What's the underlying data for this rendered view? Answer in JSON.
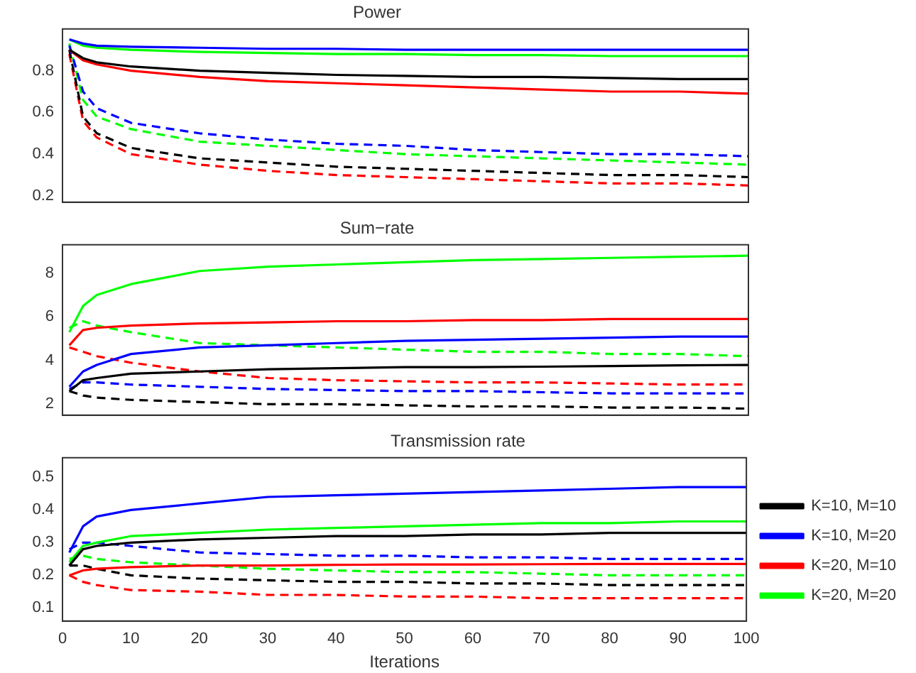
{
  "chart_data": [
    {
      "type": "line",
      "title": "Power",
      "x": [
        1,
        3,
        5,
        10,
        20,
        30,
        40,
        50,
        60,
        70,
        80,
        90,
        100
      ],
      "xlim": [
        0,
        100
      ],
      "xticks": [
        0,
        10,
        20,
        30,
        40,
        50,
        60,
        70,
        80,
        90,
        100
      ],
      "ylim": [
        0.17,
        1.0
      ],
      "yticks": [
        0.2,
        0.4,
        0.6,
        0.8
      ],
      "tick_labels": "y",
      "marker": "none",
      "legend": false,
      "grid": false,
      "series": [
        {
          "color": "#000000",
          "line_style": "solid",
          "values": [
            0.9,
            0.86,
            0.84,
            0.82,
            0.8,
            0.79,
            0.78,
            0.775,
            0.77,
            0.77,
            0.765,
            0.76,
            0.76
          ]
        },
        {
          "color": "#0000ff",
          "line_style": "solid",
          "values": [
            0.95,
            0.93,
            0.92,
            0.915,
            0.91,
            0.905,
            0.905,
            0.9,
            0.9,
            0.9,
            0.9,
            0.9,
            0.9
          ]
        },
        {
          "color": "#ff0000",
          "line_style": "solid",
          "values": [
            0.9,
            0.85,
            0.83,
            0.8,
            0.77,
            0.75,
            0.74,
            0.73,
            0.72,
            0.71,
            0.7,
            0.7,
            0.69
          ]
        },
        {
          "color": "#00ff00",
          "line_style": "solid",
          "values": [
            0.95,
            0.92,
            0.91,
            0.9,
            0.89,
            0.885,
            0.88,
            0.88,
            0.875,
            0.875,
            0.87,
            0.87,
            0.87
          ]
        },
        {
          "color": "#0000ff",
          "line_style": "dashed",
          "values": [
            0.92,
            0.7,
            0.62,
            0.55,
            0.5,
            0.47,
            0.45,
            0.44,
            0.42,
            0.41,
            0.4,
            0.4,
            0.39
          ]
        },
        {
          "color": "#00ff00",
          "line_style": "dashed",
          "values": [
            0.93,
            0.66,
            0.58,
            0.52,
            0.46,
            0.44,
            0.42,
            0.4,
            0.39,
            0.38,
            0.37,
            0.36,
            0.35
          ]
        },
        {
          "color": "#000000",
          "line_style": "dashed",
          "values": [
            0.9,
            0.58,
            0.5,
            0.43,
            0.38,
            0.36,
            0.34,
            0.33,
            0.32,
            0.31,
            0.3,
            0.3,
            0.29
          ]
        },
        {
          "color": "#ff0000",
          "line_style": "dashed",
          "values": [
            0.88,
            0.56,
            0.48,
            0.4,
            0.35,
            0.32,
            0.3,
            0.29,
            0.28,
            0.27,
            0.26,
            0.26,
            0.25
          ]
        }
      ]
    },
    {
      "type": "line",
      "title": "Sum−rate",
      "x": [
        1,
        3,
        5,
        10,
        20,
        30,
        40,
        50,
        60,
        70,
        80,
        90,
        100
      ],
      "xlim": [
        0,
        100
      ],
      "xticks": [
        0,
        10,
        20,
        30,
        40,
        50,
        60,
        70,
        80,
        90,
        100
      ],
      "ylim": [
        1.5,
        9.3
      ],
      "yticks": [
        2,
        4,
        6,
        8
      ],
      "tick_labels": "y",
      "marker": "none",
      "legend": false,
      "grid": false,
      "series": [
        {
          "color": "#000000",
          "line_style": "solid",
          "values": [
            2.6,
            3.1,
            3.2,
            3.4,
            3.5,
            3.6,
            3.65,
            3.7,
            3.7,
            3.72,
            3.75,
            3.78,
            3.8
          ]
        },
        {
          "color": "#0000ff",
          "line_style": "solid",
          "values": [
            2.8,
            3.5,
            3.8,
            4.3,
            4.6,
            4.7,
            4.8,
            4.9,
            4.95,
            5.0,
            5.05,
            5.1,
            5.1
          ]
        },
        {
          "color": "#ff0000",
          "line_style": "solid",
          "values": [
            4.7,
            5.4,
            5.5,
            5.6,
            5.7,
            5.75,
            5.8,
            5.8,
            5.85,
            5.85,
            5.9,
            5.9,
            5.9
          ]
        },
        {
          "color": "#00ff00",
          "line_style": "solid",
          "values": [
            5.3,
            6.5,
            7.0,
            7.5,
            8.1,
            8.3,
            8.4,
            8.5,
            8.6,
            8.65,
            8.7,
            8.75,
            8.8
          ]
        },
        {
          "color": "#0000ff",
          "line_style": "dashed",
          "values": [
            2.7,
            3.0,
            3.0,
            2.9,
            2.8,
            2.7,
            2.65,
            2.6,
            2.6,
            2.55,
            2.5,
            2.5,
            2.5
          ]
        },
        {
          "color": "#00ff00",
          "line_style": "dashed",
          "values": [
            5.5,
            5.8,
            5.6,
            5.3,
            4.8,
            4.7,
            4.6,
            4.5,
            4.4,
            4.4,
            4.3,
            4.3,
            4.2
          ]
        },
        {
          "color": "#000000",
          "line_style": "dashed",
          "values": [
            2.6,
            2.4,
            2.3,
            2.2,
            2.1,
            2.0,
            2.0,
            1.95,
            1.9,
            1.9,
            1.85,
            1.85,
            1.8
          ]
        },
        {
          "color": "#ff0000",
          "line_style": "dashed",
          "values": [
            4.6,
            4.4,
            4.2,
            3.9,
            3.5,
            3.2,
            3.1,
            3.05,
            3.0,
            3.0,
            2.95,
            2.9,
            2.9
          ]
        }
      ]
    },
    {
      "type": "line",
      "title": "Transmission rate",
      "xlabel": "Iterations",
      "x": [
        1,
        3,
        5,
        10,
        20,
        30,
        40,
        50,
        60,
        70,
        80,
        90,
        100
      ],
      "xlim": [
        0,
        100
      ],
      "xticks": [
        0,
        10,
        20,
        30,
        40,
        50,
        60,
        70,
        80,
        90,
        100
      ],
      "ylim": [
        0.06,
        0.56
      ],
      "yticks": [
        0.1,
        0.2,
        0.3,
        0.4,
        0.5
      ],
      "marker": "none",
      "legend": "right",
      "grid": false,
      "series": [
        {
          "name": "K=10, M=10",
          "color": "#000000",
          "line_style": "solid",
          "values": [
            0.23,
            0.28,
            0.29,
            0.3,
            0.31,
            0.315,
            0.32,
            0.32,
            0.325,
            0.325,
            0.33,
            0.33,
            0.33
          ]
        },
        {
          "name": "K=10, M=20",
          "color": "#0000ff",
          "line_style": "solid",
          "values": [
            0.27,
            0.35,
            0.38,
            0.4,
            0.42,
            0.44,
            0.445,
            0.45,
            0.455,
            0.46,
            0.465,
            0.47,
            0.47
          ]
        },
        {
          "name": "K=20, M=10",
          "color": "#ff0000",
          "line_style": "solid",
          "values": [
            0.2,
            0.215,
            0.22,
            0.225,
            0.23,
            0.23,
            0.232,
            0.233,
            0.233,
            0.234,
            0.235,
            0.235,
            0.235
          ]
        },
        {
          "name": "K=20, M=20",
          "color": "#00ff00",
          "line_style": "solid",
          "values": [
            0.24,
            0.29,
            0.3,
            0.32,
            0.33,
            0.34,
            0.345,
            0.35,
            0.355,
            0.36,
            0.36,
            0.365,
            0.365
          ]
        },
        {
          "color": "#0000ff",
          "line_style": "dashed",
          "values": [
            0.28,
            0.3,
            0.3,
            0.29,
            0.27,
            0.265,
            0.26,
            0.26,
            0.255,
            0.255,
            0.25,
            0.25,
            0.25
          ]
        },
        {
          "color": "#00ff00",
          "line_style": "dashed",
          "values": [
            0.25,
            0.26,
            0.25,
            0.24,
            0.23,
            0.22,
            0.215,
            0.21,
            0.21,
            0.205,
            0.2,
            0.2,
            0.2
          ]
        },
        {
          "color": "#000000",
          "line_style": "dashed",
          "values": [
            0.23,
            0.23,
            0.22,
            0.2,
            0.19,
            0.185,
            0.18,
            0.18,
            0.175,
            0.175,
            0.17,
            0.17,
            0.17
          ]
        },
        {
          "color": "#ff0000",
          "line_style": "dashed",
          "values": [
            0.2,
            0.18,
            0.17,
            0.155,
            0.15,
            0.14,
            0.14,
            0.135,
            0.135,
            0.13,
            0.13,
            0.13,
            0.13
          ]
        }
      ]
    }
  ]
}
